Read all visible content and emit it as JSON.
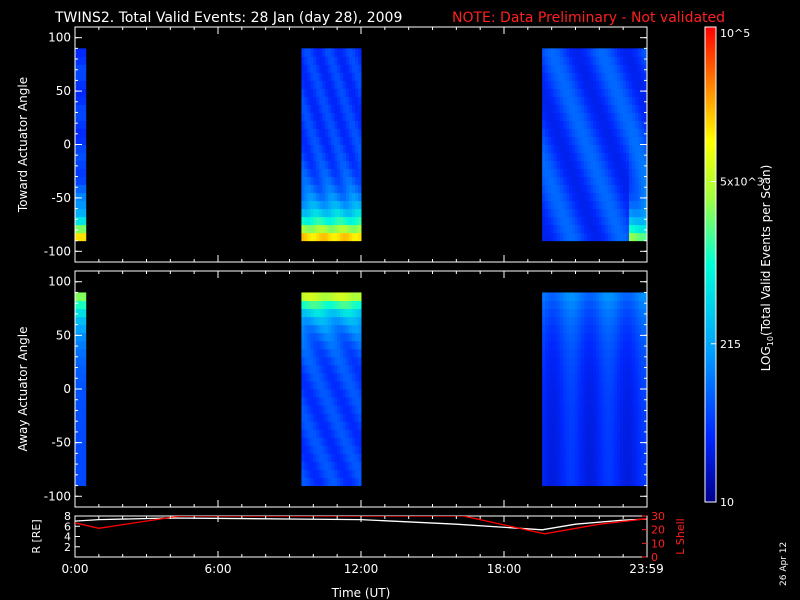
{
  "header": {
    "title": "TWINS2. Total Valid Events: 28 Jan (day  28), 2009",
    "note": "NOTE: Data Preliminary - Not validated"
  },
  "colorbar": {
    "label": "LOG10(Total Valid Events per Scan)",
    "label_main": "LOG",
    "label_sub": "10",
    "label_rest": "(Total Valid Events per Scan)",
    "ticks": [
      "10",
      "215",
      "5x10^3",
      "10^5"
    ],
    "tick_values": [
      10,
      215,
      5000,
      100000
    ],
    "scale": "log",
    "palette": [
      "#00008c",
      "#0028ff",
      "#00a0ff",
      "#00ffd8",
      "#a0ff40",
      "#ffff00",
      "#ff8000",
      "#ff0000"
    ]
  },
  "footer": {
    "date_stamp": "26 Apr 12"
  },
  "chart_data": [
    {
      "type": "heatmap",
      "title": "",
      "xlabel": "",
      "ylabel": "Toward Actuator Angle",
      "xlim": [
        0,
        24
      ],
      "ylim": [
        -110,
        110
      ],
      "yticks": [
        100,
        50,
        0,
        -50,
        -100
      ],
      "ytick_labels": [
        "100",
        "50",
        "0",
        "-50",
        "-100"
      ],
      "y_range_data": [
        -90,
        90
      ],
      "data_intervals_ut_hours": [
        [
          0.0,
          0.45
        ],
        [
          9.5,
          12.0
        ],
        [
          19.6,
          24.0
        ]
      ],
      "description_of_intensity": "high counts (orange/red) near -90 deg at ~0:00 and ~10:00-12:00; mostly low (blue) elsewhere"
    },
    {
      "type": "heatmap",
      "title": "",
      "xlabel": "",
      "ylabel": "Away Actuator Angle",
      "xlim": [
        0,
        24
      ],
      "ylim": [
        -110,
        110
      ],
      "yticks": [
        100,
        50,
        0,
        -50,
        -100
      ],
      "ytick_labels": [
        "100",
        "50",
        "0",
        "-50",
        "-100"
      ],
      "y_range_data": [
        -90,
        90
      ],
      "data_intervals_ut_hours": [
        [
          0.0,
          0.45
        ],
        [
          9.5,
          12.0
        ],
        [
          19.6,
          24.0
        ]
      ],
      "description_of_intensity": "yellow/green near +90 deg at ~0:00 and ~9:30-12:00; blue elsewhere"
    },
    {
      "type": "line",
      "title": "",
      "xlabel": "Time (UT)",
      "ylabel": "R [RE]",
      "ylabel_right": "L Shell",
      "xlim": [
        0,
        24
      ],
      "ylim": [
        0,
        8
      ],
      "ylim_right": [
        0,
        30
      ],
      "yticks": [
        0,
        2,
        4,
        6,
        8
      ],
      "yticks_right": [
        0,
        10,
        20,
        30
      ],
      "xticks": [
        0,
        6,
        12,
        18,
        23.98
      ],
      "xtick_labels": [
        "0:00",
        "6:00",
        "12:00",
        "18:00",
        "23:59"
      ],
      "series": [
        {
          "name": "R [RE]",
          "color": "#ffffff",
          "x": [
            0,
            1,
            4,
            9.5,
            12,
            16,
            19.6,
            21,
            23,
            24
          ],
          "y": [
            7.0,
            7.3,
            7.6,
            7.4,
            7.3,
            6.4,
            5.3,
            6.4,
            7.2,
            7.4
          ]
        },
        {
          "name": "L Shell",
          "color": "#ff0000",
          "x": [
            0,
            1,
            4.4,
            16.3,
            19.7,
            22,
            24
          ],
          "y": [
            25,
            21,
            30,
            30,
            17,
            24,
            28
          ]
        }
      ]
    }
  ]
}
